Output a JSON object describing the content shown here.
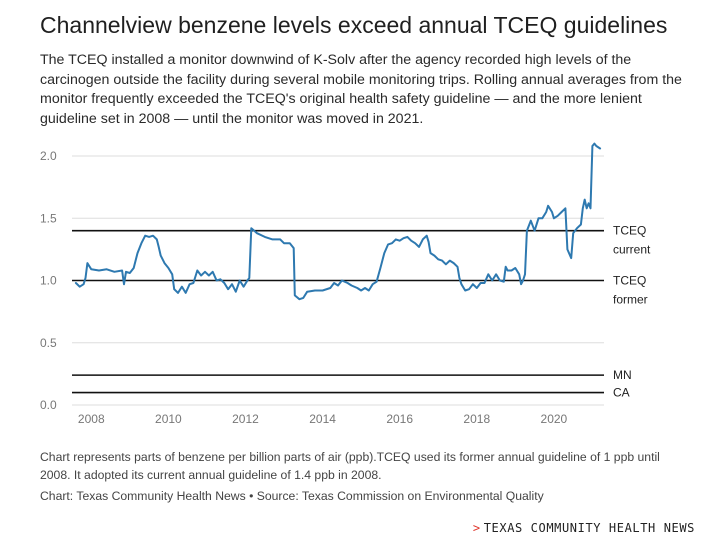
{
  "header": {
    "title": "Channelview benzene levels exceed annual TCEQ guidelines",
    "subtitle": "The TCEQ installed a monitor downwind of K-Solv after the agency recorded high levels of the carcinogen outside the facility during several mobile monitoring trips. Rolling annual averages from the monitor frequently exceeded the TCEQ's original health safety guideline — and the more lenient guideline set in 2008 — until the monitor was moved in 2021."
  },
  "footer": {
    "note": "Chart represents parts of benzene per billion parts of air (ppb).TCEQ used its former annual guideline of 1 ppb until 2008. It adopted its current annual guideline of 1.4 ppb in 2008.",
    "credit": "Chart: Texas Community Health News • Source: Texas Commission on Environmental Quality",
    "brand_chevron": ">",
    "brand": "TEXAS COMMUNITY HEALTH NEWS"
  },
  "colors": {
    "line": "#2e79b0",
    "reference": "#111111",
    "grid": "#dddddd",
    "brand_accent": "#e0362c"
  },
  "chart_data": {
    "type": "line",
    "title": "Channelview benzene levels exceed annual TCEQ guidelines",
    "xlabel": "",
    "ylabel": "",
    "unit": "ppb (annual rolling average)",
    "xlim": [
      2007.5,
      2021.3
    ],
    "ylim": [
      0,
      2.0
    ],
    "x_ticks": [
      2008,
      2010,
      2012,
      2014,
      2016,
      2018,
      2020
    ],
    "x_tick_labels": [
      "2008",
      "2010",
      "2012",
      "2014",
      "2016",
      "2018",
      "2020"
    ],
    "y_ticks": [
      0,
      0.5,
      1.0,
      1.5,
      2.0
    ],
    "y_tick_labels": [
      "0.0",
      "0.5",
      "1.0",
      "1.5",
      "2.0"
    ],
    "grid": "horizontal",
    "reference_lines": [
      {
        "value": 1.4,
        "label_lines": [
          "TCEQ",
          "current"
        ]
      },
      {
        "value": 1.0,
        "label_lines": [
          "TCEQ",
          "former"
        ]
      },
      {
        "value": 0.24,
        "label_lines": [
          "MN"
        ]
      },
      {
        "value": 0.1,
        "label_lines": [
          "CA"
        ]
      }
    ],
    "series": [
      {
        "name": "Benzene rolling annual average",
        "points": [
          [
            2007.6,
            0.98
          ],
          [
            2007.7,
            0.95
          ],
          [
            2007.8,
            0.97
          ],
          [
            2007.85,
            1.02
          ],
          [
            2007.9,
            1.14
          ],
          [
            2008.0,
            1.09
          ],
          [
            2008.2,
            1.08
          ],
          [
            2008.4,
            1.09
          ],
          [
            2008.6,
            1.07
          ],
          [
            2008.8,
            1.08
          ],
          [
            2008.85,
            0.97
          ],
          [
            2008.9,
            1.07
          ],
          [
            2009.0,
            1.06
          ],
          [
            2009.1,
            1.1
          ],
          [
            2009.2,
            1.22
          ],
          [
            2009.3,
            1.3
          ],
          [
            2009.4,
            1.36
          ],
          [
            2009.5,
            1.35
          ],
          [
            2009.6,
            1.36
          ],
          [
            2009.7,
            1.33
          ],
          [
            2009.75,
            1.27
          ],
          [
            2009.8,
            1.2
          ],
          [
            2009.9,
            1.14
          ],
          [
            2010.0,
            1.1
          ],
          [
            2010.1,
            1.05
          ],
          [
            2010.15,
            0.93
          ],
          [
            2010.25,
            0.9
          ],
          [
            2010.35,
            0.95
          ],
          [
            2010.45,
            0.9
          ],
          [
            2010.55,
            0.97
          ],
          [
            2010.65,
            0.98
          ],
          [
            2010.75,
            1.08
          ],
          [
            2010.85,
            1.04
          ],
          [
            2010.95,
            1.07
          ],
          [
            2011.05,
            1.04
          ],
          [
            2011.15,
            1.07
          ],
          [
            2011.25,
            1.0
          ],
          [
            2011.35,
            1.01
          ],
          [
            2011.45,
            0.98
          ],
          [
            2011.55,
            0.93
          ],
          [
            2011.65,
            0.97
          ],
          [
            2011.75,
            0.91
          ],
          [
            2011.85,
            1.0
          ],
          [
            2011.95,
            0.95
          ],
          [
            2012.05,
            1.0
          ],
          [
            2012.1,
            1.02
          ],
          [
            2012.15,
            1.42
          ],
          [
            2012.3,
            1.38
          ],
          [
            2012.5,
            1.35
          ],
          [
            2012.7,
            1.33
          ],
          [
            2012.9,
            1.33
          ],
          [
            2013.0,
            1.3
          ],
          [
            2013.15,
            1.3
          ],
          [
            2013.25,
            1.26
          ],
          [
            2013.28,
            0.88
          ],
          [
            2013.4,
            0.85
          ],
          [
            2013.5,
            0.86
          ],
          [
            2013.6,
            0.91
          ],
          [
            2013.8,
            0.92
          ],
          [
            2014.0,
            0.92
          ],
          [
            2014.2,
            0.94
          ],
          [
            2014.3,
            0.98
          ],
          [
            2014.4,
            0.96
          ],
          [
            2014.5,
            1.0
          ],
          [
            2014.65,
            0.98
          ],
          [
            2014.75,
            0.96
          ],
          [
            2014.9,
            0.94
          ],
          [
            2015.0,
            0.92
          ],
          [
            2015.1,
            0.94
          ],
          [
            2015.2,
            0.92
          ],
          [
            2015.3,
            0.97
          ],
          [
            2015.4,
            0.99
          ],
          [
            2015.5,
            1.1
          ],
          [
            2015.6,
            1.22
          ],
          [
            2015.7,
            1.29
          ],
          [
            2015.8,
            1.3
          ],
          [
            2015.9,
            1.33
          ],
          [
            2016.0,
            1.32
          ],
          [
            2016.1,
            1.34
          ],
          [
            2016.2,
            1.35
          ],
          [
            2016.3,
            1.32
          ],
          [
            2016.4,
            1.3
          ],
          [
            2016.5,
            1.27
          ],
          [
            2016.6,
            1.33
          ],
          [
            2016.7,
            1.36
          ],
          [
            2016.75,
            1.31
          ],
          [
            2016.8,
            1.22
          ],
          [
            2016.9,
            1.2
          ],
          [
            2017.0,
            1.17
          ],
          [
            2017.1,
            1.16
          ],
          [
            2017.2,
            1.13
          ],
          [
            2017.3,
            1.16
          ],
          [
            2017.4,
            1.14
          ],
          [
            2017.5,
            1.11
          ],
          [
            2017.55,
            1.02
          ],
          [
            2017.6,
            0.97
          ],
          [
            2017.7,
            0.92
          ],
          [
            2017.8,
            0.93
          ],
          [
            2017.9,
            0.97
          ],
          [
            2018.0,
            0.94
          ],
          [
            2018.1,
            0.98
          ],
          [
            2018.2,
            0.98
          ],
          [
            2018.3,
            1.05
          ],
          [
            2018.4,
            1.0
          ],
          [
            2018.5,
            1.05
          ],
          [
            2018.6,
            1.0
          ],
          [
            2018.7,
            0.99
          ],
          [
            2018.75,
            1.11
          ],
          [
            2018.8,
            1.08
          ],
          [
            2018.9,
            1.08
          ],
          [
            2019.0,
            1.1
          ],
          [
            2019.1,
            1.05
          ],
          [
            2019.15,
            0.97
          ],
          [
            2019.2,
            1.0
          ],
          [
            2019.25,
            1.05
          ],
          [
            2019.3,
            1.4
          ],
          [
            2019.4,
            1.48
          ],
          [
            2019.5,
            1.4
          ],
          [
            2019.6,
            1.5
          ],
          [
            2019.7,
            1.5
          ],
          [
            2019.8,
            1.55
          ],
          [
            2019.85,
            1.6
          ],
          [
            2019.95,
            1.55
          ],
          [
            2020.0,
            1.5
          ],
          [
            2020.1,
            1.52
          ],
          [
            2020.2,
            1.55
          ],
          [
            2020.3,
            1.58
          ],
          [
            2020.35,
            1.25
          ],
          [
            2020.45,
            1.18
          ],
          [
            2020.5,
            1.38
          ],
          [
            2020.6,
            1.42
          ],
          [
            2020.7,
            1.45
          ],
          [
            2020.75,
            1.58
          ],
          [
            2020.8,
            1.65
          ],
          [
            2020.85,
            1.58
          ],
          [
            2020.9,
            1.62
          ],
          [
            2020.95,
            1.58
          ],
          [
            2021.0,
            2.08
          ],
          [
            2021.05,
            2.1
          ],
          [
            2021.1,
            2.08
          ],
          [
            2021.2,
            2.06
          ]
        ]
      }
    ]
  }
}
